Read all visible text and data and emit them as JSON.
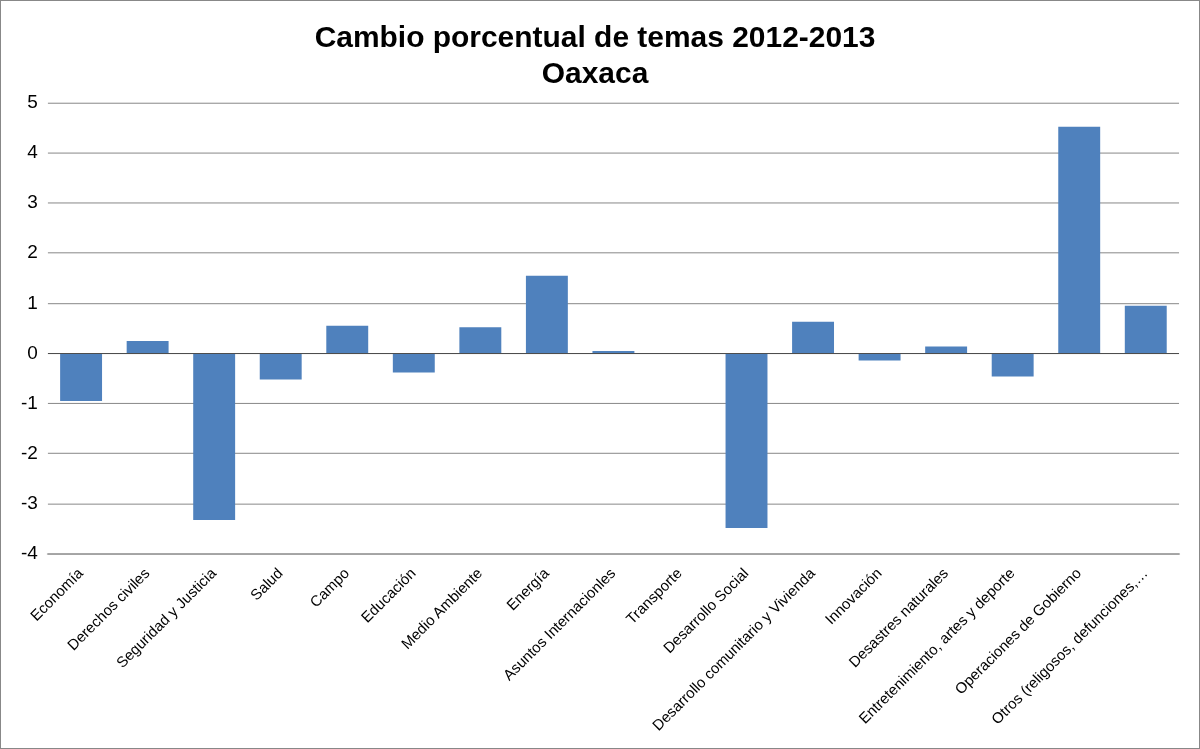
{
  "chart_data": {
    "type": "bar",
    "title": "Cambio porcentual de temas 2012-2013\nOaxaca",
    "categories": [
      "Economía",
      "Derechos civiles",
      "Seguridad y Justicia",
      "Salud",
      "Campo",
      "Educación",
      "Medio Ambiente",
      "Energía",
      "Asuntos Internacionles",
      "Transporte",
      "Desarrollo Social",
      "Desarrollo comunitario y Vivienda",
      "Innovación",
      "Desastres naturales",
      "Entretenimiento, artes y deporte",
      "Operaciones de Gobierno",
      "Otros (religosos, defunciones,…"
    ],
    "values": [
      -0.95,
      0.25,
      -3.32,
      -0.52,
      0.55,
      -0.38,
      0.52,
      1.55,
      0.05,
      0,
      -3.48,
      0.63,
      -0.14,
      0.14,
      -0.46,
      4.52,
      0.95
    ],
    "color": "#4f81bd",
    "ylim": [
      -4,
      5
    ],
    "yticks": [
      -4,
      -3,
      -2,
      -1,
      0,
      1,
      2,
      3,
      4,
      5
    ],
    "grid": "y"
  }
}
